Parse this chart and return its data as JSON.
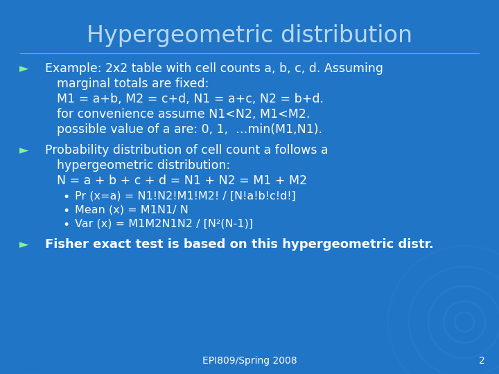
{
  "title": "Hypergeometric distribution",
  "bg_color": "#2075c7",
  "title_color": "#b8d8f0",
  "text_color": "#ffffff",
  "footer_text": "EPI809/Spring 2008",
  "footer_page": "2",
  "bullet_color": "#90ee90",
  "bullet1_lines": [
    "Example: 2x2 table with cell counts a, b, c, d. Assuming",
    "marginal totals are fixed:",
    "M1 = a+b, M2 = c+d, N1 = a+c, N2 = b+d.",
    "for convenience assume N1<N2, M1<M2.",
    "possible value of a are: 0, 1,  …min(M1,N1)."
  ],
  "bullet2_lines": [
    "Probability distribution of cell count a follows a",
    "hypergeometric distribution:",
    "N = a + b + c + d = N1 + N2 = M1 + M2"
  ],
  "subbullets": [
    "Pr (x=a) = N1!N2!M1!M2! / [N!a!b!c!d!]",
    "Mean (x) = M1N1/ N",
    "Var (x) = M1M2N1N2 / [N²(N-1)]"
  ],
  "bullet3_line": "Fisher exact test is based on this hypergeometric distr.",
  "title_fontsize": 24,
  "body_fontsize": 12.5,
  "sub_fontsize": 11.5,
  "footer_fontsize": 10
}
